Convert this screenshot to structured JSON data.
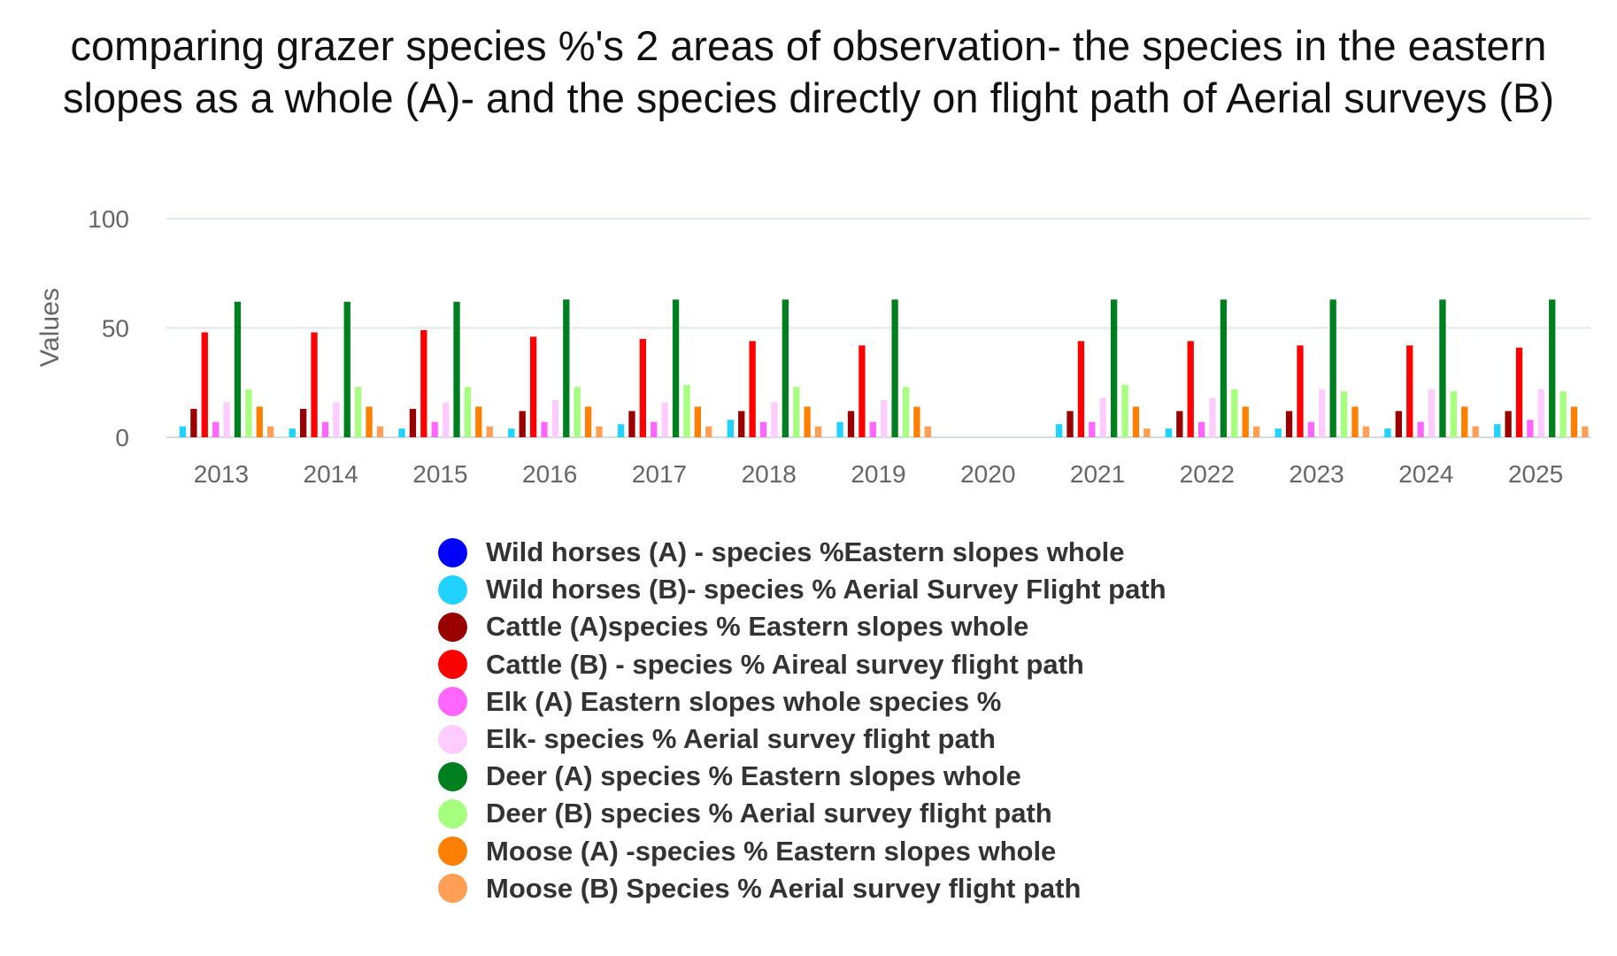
{
  "chart_data": {
    "type": "bar",
    "title": "comparing grazer species %'s 2 areas of observation- the species in the eastern slopes as a whole (A)- and the species directly on flight path of Aerial surveys (B)",
    "xlabel": "",
    "ylabel": "Values",
    "ylim": [
      0,
      100
    ],
    "yticks": [
      0,
      50,
      100
    ],
    "grid": true,
    "legend_position": "bottom",
    "categories": [
      "2013",
      "2014",
      "2015",
      "2016",
      "2017",
      "2018",
      "2019",
      "2020",
      "2021",
      "2022",
      "2023",
      "2024",
      "2025"
    ],
    "series": [
      {
        "name": "Wild horses (A) - species %Eastern slopes whole",
        "color": "#0000ff",
        "values": [
          0,
          0,
          0,
          0,
          0,
          0,
          0,
          null,
          0,
          0,
          0,
          0,
          0
        ]
      },
      {
        "name": "Wild horses (B)- species % Aerial Survey Flight path",
        "color": "#1fd2ff",
        "values": [
          5,
          4,
          4,
          4,
          6,
          8,
          7,
          null,
          6,
          4,
          4,
          4,
          6
        ]
      },
      {
        "name": "Cattle (A)species % Eastern slopes whole",
        "color": "#990000",
        "values": [
          13,
          13,
          13,
          12,
          12,
          12,
          12,
          null,
          12,
          12,
          12,
          12,
          12
        ]
      },
      {
        "name": "Cattle (B) - species % Aireal survey flight path",
        "color": "#ff0000",
        "values": [
          48,
          48,
          49,
          46,
          45,
          44,
          42,
          null,
          44,
          44,
          42,
          42,
          41
        ]
      },
      {
        "name": "Elk (A) Eastern slopes whole species %",
        "color": "#ff66ff",
        "values": [
          7,
          7,
          7,
          7,
          7,
          7,
          7,
          null,
          7,
          7,
          7,
          7,
          8
        ]
      },
      {
        "name": "Elk- species % Aerial survey flight path",
        "color": "#ffccff",
        "values": [
          16,
          16,
          16,
          17,
          16,
          16,
          17,
          null,
          18,
          18,
          22,
          22,
          22
        ]
      },
      {
        "name": "Deer (A) species % Eastern slopes whole",
        "color": "#007f1f",
        "values": [
          62,
          62,
          62,
          63,
          63,
          63,
          63,
          null,
          63,
          63,
          63,
          63,
          63
        ]
      },
      {
        "name": "Deer (B) species % Aerial survey flight path",
        "color": "#a6ff7f",
        "values": [
          22,
          23,
          23,
          23,
          24,
          23,
          23,
          null,
          24,
          22,
          21,
          21,
          21
        ]
      },
      {
        "name": "Moose (A) -species % Eastern slopes whole",
        "color": "#ff7f00",
        "values": [
          14,
          14,
          14,
          14,
          14,
          14,
          14,
          null,
          14,
          14,
          14,
          14,
          14
        ]
      },
      {
        "name": "Moose (B) Species % Aerial survey flight path",
        "color": "#ff9f55",
        "values": [
          5,
          5,
          5,
          5,
          5,
          5,
          5,
          null,
          4,
          5,
          5,
          5,
          5
        ]
      }
    ]
  }
}
